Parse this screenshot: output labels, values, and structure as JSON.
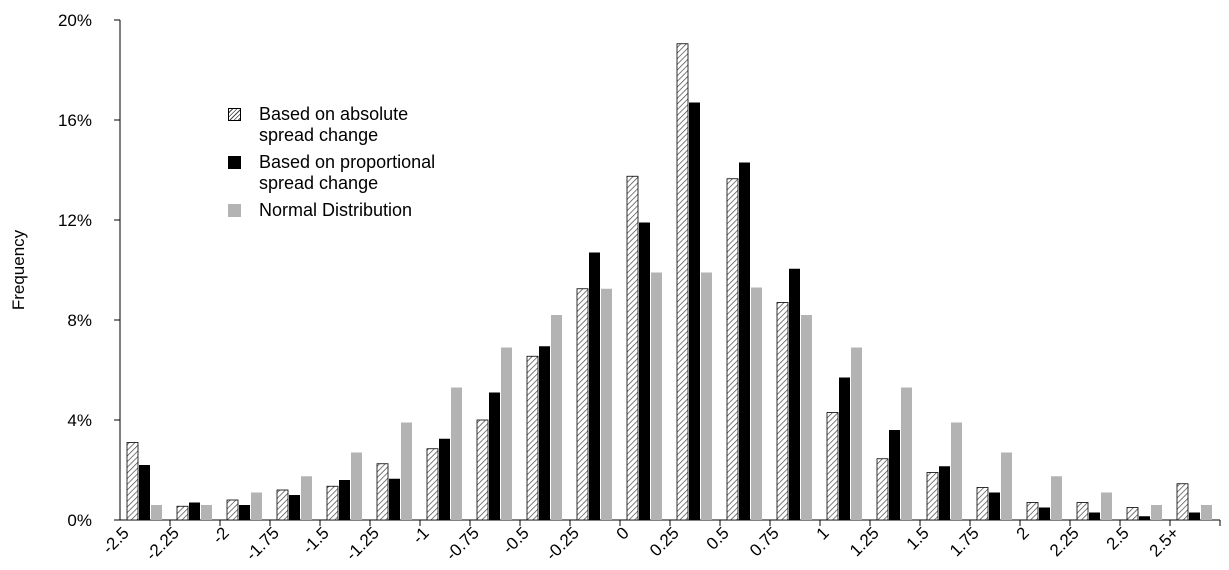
{
  "chart_data": {
    "type": "bar",
    "y_label": "Frequency",
    "categories": [
      "-2.5",
      "-2.25",
      "-2",
      "-1.75",
      "-1.5",
      "-1.25",
      "-1",
      "-0.75",
      "-0.5",
      "-0.25",
      "0",
      "0.25",
      "0.5",
      "0.75",
      "1",
      "1.25",
      "1.5",
      "1.75",
      "2",
      "2.25",
      "2.5",
      "2.5+"
    ],
    "series": [
      {
        "name": "Based on absolute spread change",
        "color": "#ffffff",
        "pattern": "hatch",
        "values": [
          3.1,
          0.55,
          0.8,
          1.2,
          1.35,
          2.25,
          2.85,
          4.0,
          6.55,
          9.25,
          13.75,
          19.05,
          13.65,
          8.7,
          4.3,
          2.45,
          1.9,
          1.3,
          0.7,
          0.7,
          0.5,
          1.45
        ]
      },
      {
        "name": "Based on proportional spread change",
        "color": "#000000",
        "values": [
          2.2,
          0.7,
          0.6,
          1.0,
          1.6,
          1.65,
          3.25,
          5.1,
          6.95,
          10.7,
          11.9,
          16.7,
          14.3,
          10.05,
          5.7,
          3.6,
          2.15,
          1.1,
          0.5,
          0.3,
          0.15,
          0.3
        ]
      },
      {
        "name": "Normal Distribution",
        "color": "#b3b3b3",
        "values": [
          0.6,
          0.6,
          1.1,
          1.75,
          2.7,
          3.9,
          5.3,
          6.9,
          8.2,
          9.25,
          9.9,
          9.9,
          9.3,
          8.2,
          6.9,
          5.3,
          3.9,
          2.7,
          1.75,
          1.1,
          0.6,
          0.6
        ]
      }
    ],
    "ylim": [
      0,
      20
    ],
    "yticks": [
      {
        "value": 0,
        "label": "0%"
      },
      {
        "value": 4,
        "label": "4%"
      },
      {
        "value": 8,
        "label": "8%"
      },
      {
        "value": 12,
        "label": "12%"
      },
      {
        "value": 16,
        "label": "16%"
      },
      {
        "value": 20,
        "label": "20%"
      }
    ],
    "legend": "top-left"
  }
}
